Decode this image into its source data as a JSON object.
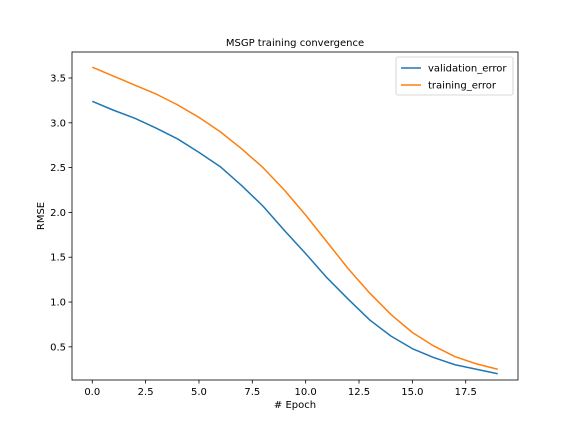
{
  "chart_data": {
    "type": "line",
    "title": "MSGP training convergence",
    "xlabel": "# Epoch",
    "ylabel": "RMSE",
    "xlim": [
      -0.95,
      19.95
    ],
    "ylim": [
      0.13,
      3.79
    ],
    "xticks": [
      0.0,
      2.5,
      5.0,
      7.5,
      10.0,
      12.5,
      15.0,
      17.5
    ],
    "xtick_labels": [
      "0.0",
      "2.5",
      "5.0",
      "7.5",
      "10.0",
      "12.5",
      "15.0",
      "17.5"
    ],
    "yticks": [
      0.5,
      1.0,
      1.5,
      2.0,
      2.5,
      3.0,
      3.5
    ],
    "ytick_labels": [
      "0.5",
      "1.0",
      "1.5",
      "2.0",
      "2.5",
      "3.0",
      "3.5"
    ],
    "grid": false,
    "legend_position": "top-right",
    "x": [
      0,
      1,
      2,
      3,
      4,
      5,
      6,
      7,
      8,
      9,
      10,
      11,
      12,
      13,
      14,
      15,
      16,
      17,
      18,
      19
    ],
    "series": [
      {
        "name": "validation_error",
        "color": "#1f77b4",
        "values": [
          3.24,
          3.14,
          3.05,
          2.94,
          2.82,
          2.67,
          2.51,
          2.3,
          2.07,
          1.8,
          1.54,
          1.27,
          1.03,
          0.8,
          0.62,
          0.48,
          0.38,
          0.3,
          0.25,
          0.2
        ]
      },
      {
        "name": "training_error",
        "color": "#ff7f0e",
        "values": [
          3.62,
          3.52,
          3.42,
          3.32,
          3.2,
          3.06,
          2.9,
          2.71,
          2.5,
          2.25,
          1.97,
          1.67,
          1.37,
          1.1,
          0.86,
          0.66,
          0.51,
          0.39,
          0.31,
          0.25
        ]
      }
    ]
  }
}
